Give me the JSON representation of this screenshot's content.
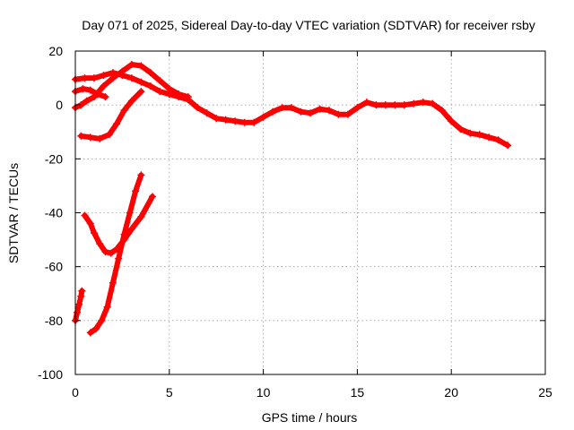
{
  "chart_data": {
    "type": "line",
    "title": "Day 071 of 2025, Sidereal Day-to-day VTEC variation (SDTVAR) for receiver rsby",
    "xlabel": "GPS time / hours",
    "ylabel": "SDTVAR / TECUs",
    "xlim": [
      0,
      25
    ],
    "ylim": [
      -100,
      20
    ],
    "xticks": [
      0,
      5,
      10,
      15,
      20,
      25
    ],
    "yticks": [
      -100,
      -80,
      -60,
      -40,
      -20,
      0,
      20
    ],
    "grid": true,
    "legend": "none",
    "series_color": "#ff0000",
    "series": [
      {
        "name": "main-track",
        "values": [
          [
            0.0,
            9.5
          ],
          [
            0.5,
            10.0
          ],
          [
            1.0,
            10.0
          ],
          [
            1.5,
            11.0
          ],
          [
            2.0,
            12.0
          ],
          [
            2.5,
            11.0
          ],
          [
            3.0,
            10.0
          ],
          [
            3.5,
            8.5
          ],
          [
            4.0,
            7.0
          ],
          [
            4.5,
            5.0
          ],
          [
            5.0,
            4.0
          ],
          [
            5.5,
            3.0
          ],
          [
            6.0,
            2.0
          ],
          [
            6.5,
            -1.0
          ],
          [
            7.0,
            -3.0
          ],
          [
            7.5,
            -5.0
          ],
          [
            8.0,
            -5.5
          ],
          [
            8.5,
            -6.0
          ],
          [
            9.0,
            -6.5
          ],
          [
            9.5,
            -6.5
          ],
          [
            10.0,
            -4.5
          ],
          [
            10.5,
            -2.5
          ],
          [
            11.0,
            -1.0
          ],
          [
            11.5,
            -1.0
          ],
          [
            12.0,
            -2.5
          ],
          [
            12.5,
            -3.0
          ],
          [
            13.0,
            -1.5
          ],
          [
            13.5,
            -2.0
          ],
          [
            14.0,
            -3.5
          ],
          [
            14.5,
            -3.5
          ],
          [
            15.0,
            -1.0
          ],
          [
            15.5,
            1.0
          ],
          [
            16.0,
            0.0
          ],
          [
            16.5,
            0.0
          ],
          [
            17.0,
            0.0
          ],
          [
            17.5,
            0.0
          ],
          [
            18.0,
            0.5
          ],
          [
            18.5,
            1.0
          ],
          [
            19.0,
            0.5
          ],
          [
            19.5,
            -2.0
          ],
          [
            20.0,
            -6.0
          ],
          [
            20.5,
            -9.0
          ],
          [
            21.0,
            -10.5
          ],
          [
            21.5,
            -11.0
          ],
          [
            22.0,
            -12.0
          ],
          [
            22.5,
            -13.0
          ],
          [
            23.0,
            -15.0
          ]
        ]
      },
      {
        "name": "upper-arc",
        "values": [
          [
            0.0,
            -1.0
          ],
          [
            0.3,
            0.0
          ],
          [
            0.6,
            1.5
          ],
          [
            1.0,
            3.0
          ],
          [
            1.5,
            7.0
          ],
          [
            2.0,
            10.0
          ],
          [
            2.5,
            12.5
          ],
          [
            3.0,
            15.0
          ],
          [
            3.5,
            14.5
          ],
          [
            4.0,
            12.0
          ],
          [
            4.5,
            9.0
          ],
          [
            5.0,
            6.0
          ],
          [
            5.5,
            4.0
          ],
          [
            6.0,
            3.0
          ]
        ]
      },
      {
        "name": "short-segment",
        "values": [
          [
            0.0,
            5.0
          ],
          [
            0.4,
            6.0
          ],
          [
            0.8,
            5.5
          ],
          [
            1.2,
            4.0
          ],
          [
            1.6,
            3.0
          ]
        ]
      },
      {
        "name": "rising-segment",
        "values": [
          [
            0.3,
            -11.5
          ],
          [
            0.8,
            -12.0
          ],
          [
            1.3,
            -12.5
          ],
          [
            1.8,
            -11.0
          ],
          [
            2.2,
            -7.0
          ],
          [
            2.6,
            -2.0
          ],
          [
            3.0,
            1.5
          ],
          [
            3.5,
            5.0
          ]
        ]
      },
      {
        "name": "dip-curve",
        "values": [
          [
            0.5,
            -41.0
          ],
          [
            0.8,
            -44.0
          ],
          [
            1.0,
            -47.5
          ],
          [
            1.3,
            -51.5
          ],
          [
            1.6,
            -54.5
          ],
          [
            1.9,
            -55.0
          ],
          [
            2.2,
            -53.5
          ],
          [
            2.6,
            -50.0
          ],
          [
            3.0,
            -46.0
          ],
          [
            3.5,
            -41.5
          ],
          [
            4.1,
            -34.0
          ]
        ]
      },
      {
        "name": "steep-rise",
        "values": [
          [
            0.8,
            -84.5
          ],
          [
            1.1,
            -83.0
          ],
          [
            1.4,
            -80.0
          ],
          [
            1.7,
            -75.0
          ],
          [
            2.0,
            -66.0
          ],
          [
            2.3,
            -57.0
          ],
          [
            2.6,
            -48.0
          ],
          [
            2.9,
            -40.0
          ],
          [
            3.2,
            -32.0
          ],
          [
            3.5,
            -26.0
          ]
        ]
      },
      {
        "name": "early-short",
        "values": [
          [
            0.0,
            -80.0
          ],
          [
            0.1,
            -77.0
          ],
          [
            0.2,
            -74.0
          ],
          [
            0.3,
            -71.0
          ],
          [
            0.35,
            -69.0
          ]
        ]
      }
    ]
  }
}
